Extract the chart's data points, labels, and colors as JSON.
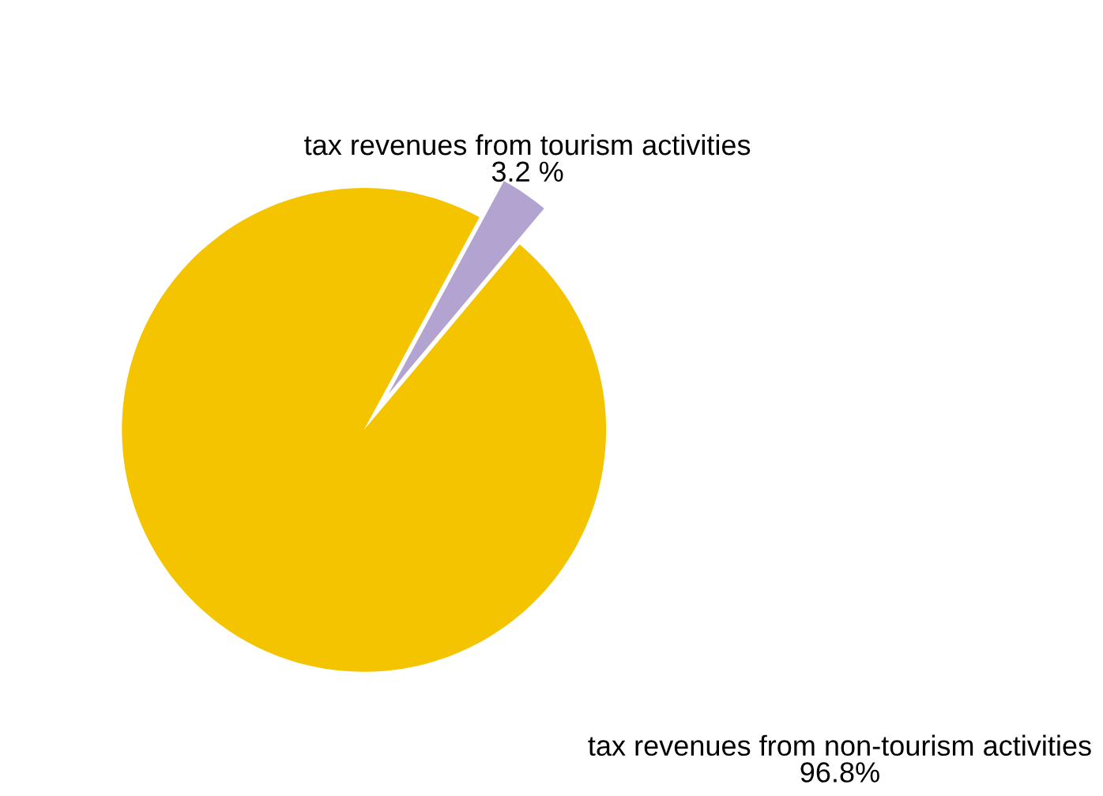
{
  "chart_data": {
    "type": "pie",
    "categories": [
      "tax revenues from tourism activities",
      "tax revenues from non-tourism activities"
    ],
    "values": [
      3.2,
      96.8
    ],
    "value_labels": [
      "3.2 %",
      "96.8%"
    ],
    "colors": [
      "#b3a3d0",
      "#f5c400"
    ],
    "legend": false
  }
}
